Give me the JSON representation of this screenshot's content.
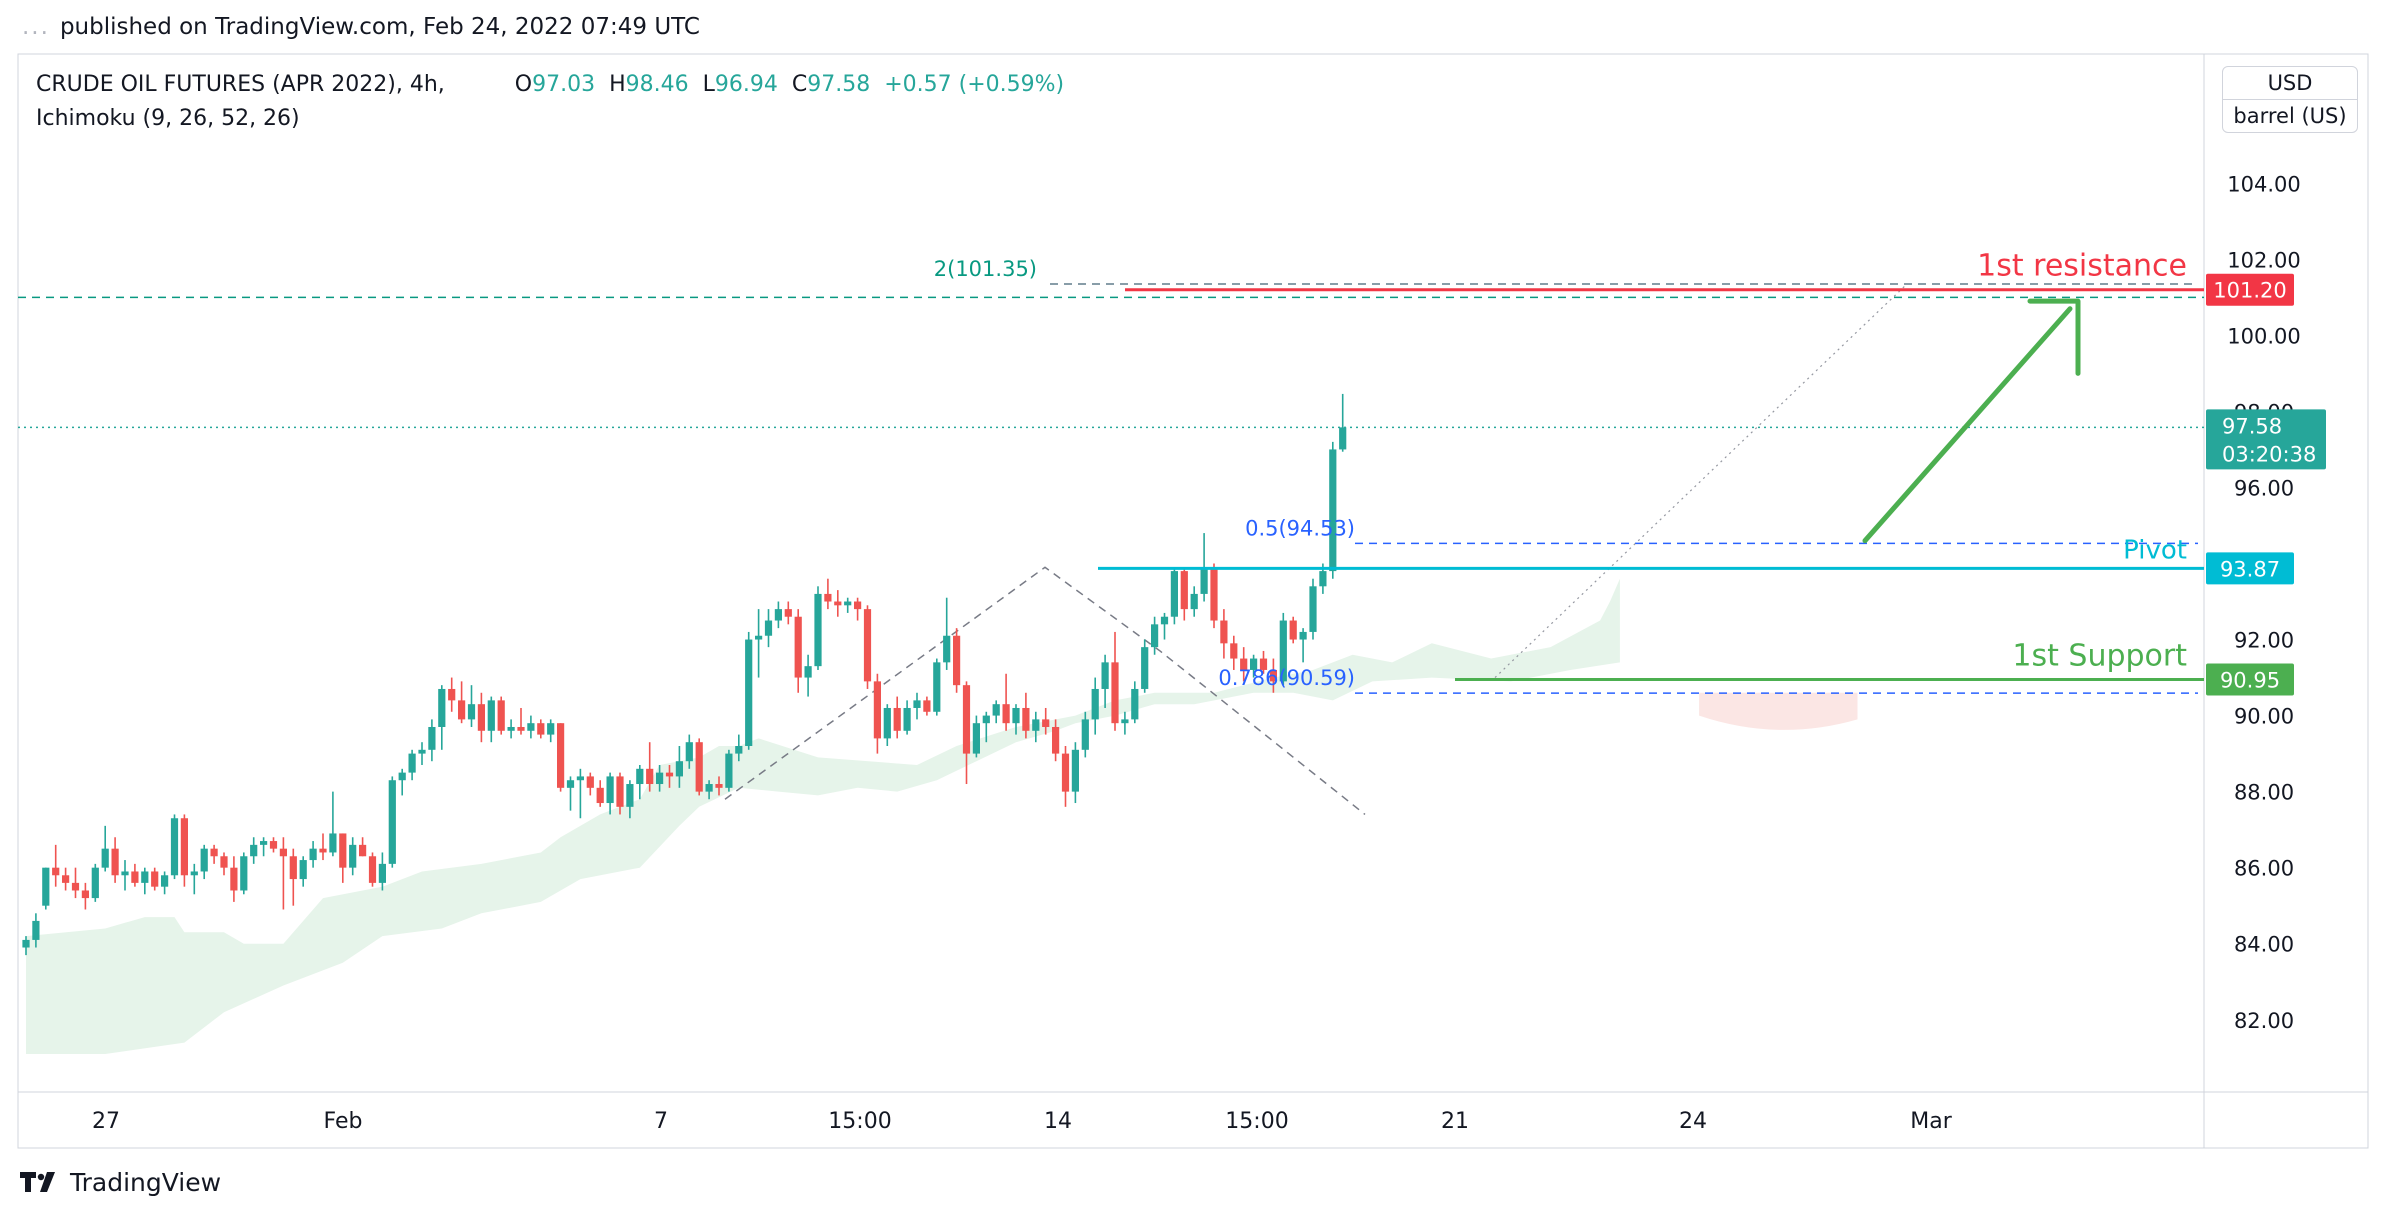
{
  "publish_info": {
    "dots": "...",
    "text": "published on TradingView.com, Feb 24, 2022 07:49 UTC"
  },
  "header": {
    "symbol": "CRUDE OIL FUTURES (APR 2022), 4h,",
    "indicator": "Ichimoku (9, 26, 52, 26)",
    "open_label": "O",
    "open": "97.03",
    "high_label": "H",
    "high": "98.46",
    "low_label": "L",
    "low": "96.94",
    "close_label": "C",
    "close": "97.58",
    "change": "+0.57 (+0.59%)"
  },
  "unit": {
    "currency": "USD",
    "unit": "barrel (US)"
  },
  "brand": {
    "name": "TradingView"
  },
  "colors": {
    "up": "#26a69a",
    "down": "#ef5350",
    "resistance": "#f23645",
    "support": "#4caf50",
    "pivot": "#00bcd4",
    "fib": "#2962ff",
    "cloud": "#e6f4ea"
  },
  "chart_data": {
    "type": "candlestick",
    "title": "",
    "ylim": [
      80.1,
      107.4
    ],
    "y_ticks": [
      "104.00",
      "102.00",
      "100.00",
      "98.00",
      "96.00",
      "92.00",
      "90.00",
      "88.00",
      "86.00",
      "84.00",
      "82.00"
    ],
    "x_ticks": [
      "27",
      "Feb",
      "7",
      "15:00",
      "14",
      "15:00",
      "21",
      "24",
      "Mar"
    ],
    "candles": [
      {
        "o": 83.9,
        "h": 84.2,
        "l": 83.7,
        "c": 84.1
      },
      {
        "o": 84.1,
        "h": 84.8,
        "l": 83.9,
        "c": 84.6
      },
      {
        "o": 85.0,
        "h": 86.0,
        "l": 84.9,
        "c": 86.0
      },
      {
        "o": 86.0,
        "h": 86.6,
        "l": 85.5,
        "c": 85.8
      },
      {
        "o": 85.8,
        "h": 86.0,
        "l": 85.4,
        "c": 85.6
      },
      {
        "o": 85.6,
        "h": 86.0,
        "l": 85.2,
        "c": 85.4
      },
      {
        "o": 85.4,
        "h": 85.6,
        "l": 84.9,
        "c": 85.2
      },
      {
        "o": 85.2,
        "h": 86.1,
        "l": 85.1,
        "c": 86.0
      },
      {
        "o": 86.0,
        "h": 87.1,
        "l": 85.9,
        "c": 86.5
      },
      {
        "o": 86.5,
        "h": 86.8,
        "l": 85.6,
        "c": 85.8
      },
      {
        "o": 85.8,
        "h": 86.2,
        "l": 85.4,
        "c": 85.9
      },
      {
        "o": 85.9,
        "h": 86.1,
        "l": 85.5,
        "c": 85.6
      },
      {
        "o": 85.6,
        "h": 86.0,
        "l": 85.3,
        "c": 85.9
      },
      {
        "o": 85.9,
        "h": 86.0,
        "l": 85.4,
        "c": 85.5
      },
      {
        "o": 85.5,
        "h": 85.9,
        "l": 85.3,
        "c": 85.8
      },
      {
        "o": 85.8,
        "h": 87.4,
        "l": 85.7,
        "c": 87.3
      },
      {
        "o": 87.3,
        "h": 87.4,
        "l": 85.5,
        "c": 85.8
      },
      {
        "o": 85.8,
        "h": 86.1,
        "l": 85.3,
        "c": 85.9
      },
      {
        "o": 85.9,
        "h": 86.6,
        "l": 85.7,
        "c": 86.5
      },
      {
        "o": 86.5,
        "h": 86.6,
        "l": 86.1,
        "c": 86.3
      },
      {
        "o": 86.3,
        "h": 86.4,
        "l": 85.8,
        "c": 86.0
      },
      {
        "o": 86.0,
        "h": 86.3,
        "l": 85.1,
        "c": 85.4
      },
      {
        "o": 85.4,
        "h": 86.4,
        "l": 85.3,
        "c": 86.3
      },
      {
        "o": 86.3,
        "h": 86.8,
        "l": 86.1,
        "c": 86.6
      },
      {
        "o": 86.6,
        "h": 86.8,
        "l": 86.3,
        "c": 86.7
      },
      {
        "o": 86.7,
        "h": 86.8,
        "l": 86.4,
        "c": 86.5
      },
      {
        "o": 86.5,
        "h": 86.8,
        "l": 84.9,
        "c": 86.3
      },
      {
        "o": 86.3,
        "h": 86.5,
        "l": 85.0,
        "c": 85.7
      },
      {
        "o": 85.7,
        "h": 86.3,
        "l": 85.5,
        "c": 86.2
      },
      {
        "o": 86.2,
        "h": 86.7,
        "l": 86.0,
        "c": 86.5
      },
      {
        "o": 86.5,
        "h": 86.9,
        "l": 86.2,
        "c": 86.4
      },
      {
        "o": 86.4,
        "h": 88.0,
        "l": 86.3,
        "c": 86.9
      },
      {
        "o": 86.9,
        "h": 86.9,
        "l": 85.6,
        "c": 86.0
      },
      {
        "o": 86.0,
        "h": 86.8,
        "l": 85.8,
        "c": 86.6
      },
      {
        "o": 86.6,
        "h": 86.8,
        "l": 86.3,
        "c": 86.3
      },
      {
        "o": 86.3,
        "h": 86.4,
        "l": 85.5,
        "c": 85.6
      },
      {
        "o": 85.6,
        "h": 86.4,
        "l": 85.4,
        "c": 86.1
      },
      {
        "o": 86.1,
        "h": 88.4,
        "l": 86.0,
        "c": 88.3
      },
      {
        "o": 88.3,
        "h": 88.6,
        "l": 87.9,
        "c": 88.5
      },
      {
        "o": 88.5,
        "h": 89.1,
        "l": 88.3,
        "c": 89.0
      },
      {
        "o": 89.0,
        "h": 89.3,
        "l": 88.7,
        "c": 89.1
      },
      {
        "o": 89.1,
        "h": 89.9,
        "l": 88.8,
        "c": 89.7
      },
      {
        "o": 89.7,
        "h": 90.8,
        "l": 89.1,
        "c": 90.7
      },
      {
        "o": 90.7,
        "h": 91.0,
        "l": 90.1,
        "c": 90.4
      },
      {
        "o": 90.4,
        "h": 90.9,
        "l": 89.8,
        "c": 89.9
      },
      {
        "o": 89.9,
        "h": 90.8,
        "l": 89.7,
        "c": 90.3
      },
      {
        "o": 90.3,
        "h": 90.6,
        "l": 89.3,
        "c": 89.6
      },
      {
        "o": 89.6,
        "h": 90.5,
        "l": 89.3,
        "c": 90.4
      },
      {
        "o": 90.4,
        "h": 90.5,
        "l": 89.5,
        "c": 89.6
      },
      {
        "o": 89.6,
        "h": 89.9,
        "l": 89.4,
        "c": 89.7
      },
      {
        "o": 89.7,
        "h": 90.2,
        "l": 89.5,
        "c": 89.6
      },
      {
        "o": 89.6,
        "h": 90.0,
        "l": 89.4,
        "c": 89.8
      },
      {
        "o": 89.8,
        "h": 89.9,
        "l": 89.4,
        "c": 89.5
      },
      {
        "o": 89.5,
        "h": 89.9,
        "l": 89.3,
        "c": 89.8
      },
      {
        "o": 89.8,
        "h": 89.8,
        "l": 88.0,
        "c": 88.1
      },
      {
        "o": 88.1,
        "h": 88.4,
        "l": 87.5,
        "c": 88.3
      },
      {
        "o": 88.3,
        "h": 88.6,
        "l": 87.3,
        "c": 88.4
      },
      {
        "o": 88.4,
        "h": 88.5,
        "l": 87.9,
        "c": 88.1
      },
      {
        "o": 88.1,
        "h": 88.3,
        "l": 87.6,
        "c": 87.7
      },
      {
        "o": 87.7,
        "h": 88.5,
        "l": 87.4,
        "c": 88.4
      },
      {
        "o": 88.4,
        "h": 88.5,
        "l": 87.4,
        "c": 87.6
      },
      {
        "o": 87.6,
        "h": 88.3,
        "l": 87.3,
        "c": 88.2
      },
      {
        "o": 88.2,
        "h": 88.7,
        "l": 87.8,
        "c": 88.6
      },
      {
        "o": 88.6,
        "h": 89.3,
        "l": 88.0,
        "c": 88.2
      },
      {
        "o": 88.2,
        "h": 88.7,
        "l": 88.0,
        "c": 88.5
      },
      {
        "o": 88.5,
        "h": 88.7,
        "l": 88.1,
        "c": 88.4
      },
      {
        "o": 88.4,
        "h": 89.2,
        "l": 88.1,
        "c": 88.8
      },
      {
        "o": 88.8,
        "h": 89.5,
        "l": 88.6,
        "c": 89.3
      },
      {
        "o": 89.3,
        "h": 89.4,
        "l": 87.9,
        "c": 88.0
      },
      {
        "o": 88.0,
        "h": 88.3,
        "l": 87.8,
        "c": 88.2
      },
      {
        "o": 88.2,
        "h": 88.4,
        "l": 87.9,
        "c": 88.1
      },
      {
        "o": 88.1,
        "h": 89.1,
        "l": 88.0,
        "c": 89.0
      },
      {
        "o": 89.0,
        "h": 89.5,
        "l": 88.8,
        "c": 89.2
      },
      {
        "o": 89.2,
        "h": 92.2,
        "l": 89.1,
        "c": 92.0
      },
      {
        "o": 92.0,
        "h": 92.8,
        "l": 91.0,
        "c": 92.1
      },
      {
        "o": 92.1,
        "h": 92.8,
        "l": 91.8,
        "c": 92.5
      },
      {
        "o": 92.5,
        "h": 93.0,
        "l": 92.3,
        "c": 92.8
      },
      {
        "o": 92.8,
        "h": 93.0,
        "l": 92.4,
        "c": 92.6
      },
      {
        "o": 92.6,
        "h": 92.8,
        "l": 90.6,
        "c": 91.0
      },
      {
        "o": 91.0,
        "h": 91.6,
        "l": 90.5,
        "c": 91.3
      },
      {
        "o": 91.3,
        "h": 93.4,
        "l": 91.2,
        "c": 93.2
      },
      {
        "o": 93.2,
        "h": 93.6,
        "l": 92.8,
        "c": 93.0
      },
      {
        "o": 93.0,
        "h": 93.3,
        "l": 92.6,
        "c": 92.9
      },
      {
        "o": 92.9,
        "h": 93.1,
        "l": 92.7,
        "c": 93.0
      },
      {
        "o": 93.0,
        "h": 93.1,
        "l": 92.5,
        "c": 92.8
      },
      {
        "o": 92.8,
        "h": 92.9,
        "l": 90.7,
        "c": 90.9
      },
      {
        "o": 90.9,
        "h": 91.1,
        "l": 89.0,
        "c": 89.4
      },
      {
        "o": 89.4,
        "h": 90.3,
        "l": 89.2,
        "c": 90.2
      },
      {
        "o": 90.2,
        "h": 90.5,
        "l": 89.4,
        "c": 89.6
      },
      {
        "o": 89.6,
        "h": 90.4,
        "l": 89.5,
        "c": 90.2
      },
      {
        "o": 90.2,
        "h": 90.6,
        "l": 89.9,
        "c": 90.4
      },
      {
        "o": 90.4,
        "h": 90.5,
        "l": 90.0,
        "c": 90.1
      },
      {
        "o": 90.1,
        "h": 91.5,
        "l": 90.0,
        "c": 91.4
      },
      {
        "o": 91.4,
        "h": 93.1,
        "l": 91.2,
        "c": 92.1
      },
      {
        "o": 92.1,
        "h": 92.3,
        "l": 90.6,
        "c": 90.8
      },
      {
        "o": 90.8,
        "h": 90.9,
        "l": 88.2,
        "c": 89.0
      },
      {
        "o": 89.0,
        "h": 90.0,
        "l": 88.9,
        "c": 89.8
      },
      {
        "o": 89.8,
        "h": 90.1,
        "l": 89.3,
        "c": 90.0
      },
      {
        "o": 90.0,
        "h": 90.4,
        "l": 89.8,
        "c": 90.3
      },
      {
        "o": 90.3,
        "h": 91.1,
        "l": 89.6,
        "c": 89.8
      },
      {
        "o": 89.8,
        "h": 90.3,
        "l": 89.5,
        "c": 90.2
      },
      {
        "o": 90.2,
        "h": 90.6,
        "l": 89.4,
        "c": 89.6
      },
      {
        "o": 89.6,
        "h": 90.1,
        "l": 89.3,
        "c": 89.9
      },
      {
        "o": 89.9,
        "h": 90.2,
        "l": 89.5,
        "c": 89.7
      },
      {
        "o": 89.7,
        "h": 89.9,
        "l": 88.8,
        "c": 89.0
      },
      {
        "o": 89.0,
        "h": 89.2,
        "l": 87.6,
        "c": 88.0
      },
      {
        "o": 88.0,
        "h": 89.3,
        "l": 87.7,
        "c": 89.1
      },
      {
        "o": 89.1,
        "h": 90.1,
        "l": 88.9,
        "c": 89.9
      },
      {
        "o": 89.9,
        "h": 91.0,
        "l": 89.5,
        "c": 90.7
      },
      {
        "o": 90.7,
        "h": 91.6,
        "l": 90.2,
        "c": 91.4
      },
      {
        "o": 91.4,
        "h": 92.2,
        "l": 89.6,
        "c": 89.8
      },
      {
        "o": 89.8,
        "h": 90.1,
        "l": 89.5,
        "c": 89.9
      },
      {
        "o": 89.9,
        "h": 90.9,
        "l": 89.8,
        "c": 90.7
      },
      {
        "o": 90.7,
        "h": 92.0,
        "l": 90.6,
        "c": 91.8
      },
      {
        "o": 91.8,
        "h": 92.6,
        "l": 91.6,
        "c": 92.4
      },
      {
        "o": 92.4,
        "h": 92.7,
        "l": 92.0,
        "c": 92.6
      },
      {
        "o": 92.6,
        "h": 93.9,
        "l": 92.4,
        "c": 93.8
      },
      {
        "o": 93.8,
        "h": 93.9,
        "l": 92.5,
        "c": 92.8
      },
      {
        "o": 92.8,
        "h": 93.4,
        "l": 92.6,
        "c": 93.2
      },
      {
        "o": 93.2,
        "h": 94.8,
        "l": 93.0,
        "c": 93.9
      },
      {
        "o": 93.9,
        "h": 94.0,
        "l": 92.3,
        "c": 92.5
      },
      {
        "o": 92.5,
        "h": 92.8,
        "l": 91.5,
        "c": 91.9
      },
      {
        "o": 91.9,
        "h": 92.1,
        "l": 91.2,
        "c": 91.5
      },
      {
        "o": 91.5,
        "h": 91.8,
        "l": 90.9,
        "c": 91.2
      },
      {
        "o": 91.2,
        "h": 91.6,
        "l": 91.0,
        "c": 91.5
      },
      {
        "o": 91.5,
        "h": 91.7,
        "l": 91.1,
        "c": 91.2
      },
      {
        "o": 91.2,
        "h": 91.5,
        "l": 90.6,
        "c": 90.9
      },
      {
        "o": 90.9,
        "h": 92.7,
        "l": 90.8,
        "c": 92.5
      },
      {
        "o": 92.5,
        "h": 92.6,
        "l": 91.9,
        "c": 92.0
      },
      {
        "o": 92.0,
        "h": 92.3,
        "l": 91.4,
        "c": 92.2
      },
      {
        "o": 92.2,
        "h": 93.6,
        "l": 92.0,
        "c": 93.4
      },
      {
        "o": 93.4,
        "h": 94.0,
        "l": 93.2,
        "c": 93.8
      },
      {
        "o": 93.8,
        "h": 97.2,
        "l": 93.6,
        "c": 97.0
      },
      {
        "o": 97.0,
        "h": 98.46,
        "l": 96.94,
        "c": 97.58
      }
    ],
    "cloud": {
      "upper": [
        [
          0,
          84.2
        ],
        [
          8,
          84.4
        ],
        [
          12,
          84.7
        ],
        [
          15,
          84.7
        ],
        [
          16,
          84.3
        ],
        [
          20,
          84.3
        ],
        [
          22,
          84.0
        ],
        [
          26,
          84.0
        ],
        [
          30,
          85.2
        ],
        [
          36,
          85.5
        ],
        [
          40,
          85.9
        ],
        [
          46,
          86.1
        ],
        [
          52,
          86.4
        ],
        [
          54,
          86.8
        ],
        [
          58,
          87.4
        ],
        [
          62,
          87.8
        ],
        [
          64,
          88.7
        ],
        [
          68,
          88.9
        ],
        [
          70,
          89.2
        ],
        [
          72,
          89.2
        ],
        [
          74,
          89.4
        ],
        [
          80,
          88.9
        ],
        [
          90,
          88.7
        ],
        [
          94,
          89.2
        ],
        [
          100,
          89.7
        ],
        [
          106,
          90.0
        ],
        [
          110,
          90.4
        ],
        [
          114,
          90.6
        ],
        [
          120,
          90.6
        ],
        [
          126,
          91.0
        ],
        [
          130,
          91.2
        ],
        [
          134,
          91.6
        ],
        [
          138,
          91.4
        ],
        [
          142,
          91.9
        ],
        [
          148,
          91.5
        ],
        [
          154,
          91.8
        ],
        [
          159,
          92.5
        ],
        [
          160,
          93.0
        ],
        [
          161,
          93.6
        ]
      ],
      "lower": [
        [
          0,
          81.1
        ],
        [
          8,
          81.1
        ],
        [
          16,
          81.4
        ],
        [
          20,
          82.2
        ],
        [
          26,
          82.9
        ],
        [
          32,
          83.5
        ],
        [
          36,
          84.2
        ],
        [
          42,
          84.4
        ],
        [
          46,
          84.8
        ],
        [
          52,
          85.1
        ],
        [
          56,
          85.7
        ],
        [
          62,
          86.0
        ],
        [
          66,
          87.1
        ],
        [
          68,
          87.6
        ],
        [
          72,
          88.1
        ],
        [
          76,
          88.0
        ],
        [
          80,
          87.9
        ],
        [
          84,
          88.1
        ],
        [
          88,
          88.0
        ],
        [
          92,
          88.3
        ],
        [
          96,
          88.8
        ],
        [
          100,
          89.3
        ],
        [
          104,
          89.6
        ],
        [
          106,
          89.8
        ],
        [
          110,
          90.0
        ],
        [
          114,
          90.3
        ],
        [
          118,
          90.3
        ],
        [
          124,
          90.6
        ],
        [
          128,
          90.6
        ],
        [
          132,
          90.4
        ],
        [
          136,
          90.9
        ],
        [
          142,
          91.0
        ],
        [
          150,
          90.9
        ],
        [
          156,
          91.2
        ],
        [
          161,
          91.4
        ]
      ]
    },
    "levels": {
      "resistance": {
        "label": "1st resistance",
        "value": 101.2,
        "tag": "101.20"
      },
      "pivot": {
        "label": "Pivot",
        "value": 93.87,
        "tag": "93.87"
      },
      "support": {
        "label": "1st Support",
        "value": 90.95,
        "tag": "90.95"
      }
    },
    "fib_levels": [
      {
        "label": "2(101.35)",
        "value": 101.35
      },
      {
        "label": "0.5(94.53)",
        "value": 94.53
      },
      {
        "label": "0.786(90.59)",
        "value": 90.59
      }
    ],
    "current_price": {
      "value": 97.58,
      "tag": "97.58",
      "countdown": "03:20:38"
    }
  }
}
